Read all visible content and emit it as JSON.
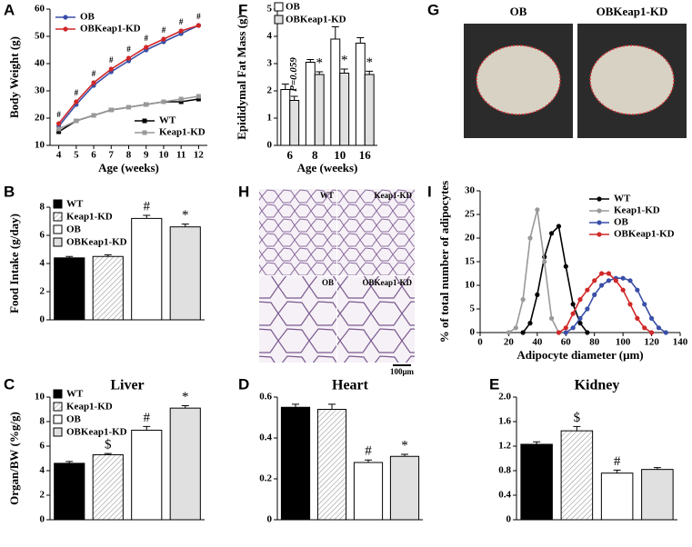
{
  "chart_data": [
    {
      "type": "line",
      "panel": "A",
      "xlabel": "Age (weeks)",
      "ylabel": "Body Weight (g)",
      "x": [
        4,
        5,
        6,
        7,
        8,
        9,
        10,
        11,
        12
      ],
      "xlim": [
        3.5,
        12.5
      ],
      "xticks": [
        4,
        5,
        6,
        7,
        8,
        9,
        10,
        11,
        12
      ],
      "ylim": [
        10,
        60
      ],
      "yticks": [
        10,
        20,
        30,
        40,
        50,
        60
      ],
      "annotations": [
        "#",
        "#",
        "#",
        "#",
        "#",
        "#",
        "#",
        "#",
        "#"
      ],
      "series": [
        {
          "name": "OB",
          "color": "#3a4fa8",
          "marker": "circle",
          "legend": "upper left",
          "values": [
            17,
            25,
            32,
            37,
            41,
            45,
            48,
            51,
            54
          ]
        },
        {
          "name": "OBKeap1-KD",
          "color": "#d02828",
          "marker": "circle",
          "legend": "upper left",
          "values": [
            18,
            26,
            33,
            38,
            42,
            46,
            49,
            52,
            54
          ]
        },
        {
          "name": "WT",
          "color": "#000000",
          "marker": "square",
          "legend": "lower right",
          "values": [
            15,
            19,
            21,
            23,
            24,
            25,
            26,
            26,
            27
          ]
        },
        {
          "name": "Keap1-KD",
          "color": "#999999",
          "marker": "square",
          "legend": "lower right",
          "values": [
            16,
            19,
            21,
            23,
            24,
            25,
            26,
            27,
            28
          ]
        }
      ]
    },
    {
      "type": "bar",
      "panel": "F",
      "xlabel": "Age (weeks)",
      "ylabel": "Epididymal Fat Mass (g)",
      "categories": [
        "6",
        "8",
        "10",
        "16"
      ],
      "ylim": [
        0,
        5
      ],
      "yticks": [
        0,
        1,
        2,
        3,
        4,
        5
      ],
      "series": [
        {
          "name": "OB",
          "color": "#ffffff",
          "values": [
            2.05,
            3.05,
            3.9,
            3.75
          ],
          "errors": [
            0.2,
            0.1,
            0.45,
            0.2
          ],
          "markers": [
            null,
            null,
            null,
            null
          ]
        },
        {
          "name": "OBKeap1-KD",
          "color": "#e0e0e0",
          "values": [
            1.65,
            2.6,
            2.65,
            2.6
          ],
          "errors": [
            0.15,
            0.1,
            0.15,
            0.12
          ],
          "markers": [
            "P=0.059",
            "*",
            "*",
            "*"
          ]
        }
      ]
    },
    {
      "type": "bar",
      "panel": "B",
      "ylabel": "Food Intake (g/day)",
      "ylim": [
        0,
        8
      ],
      "yticks": [
        0,
        2,
        4,
        6,
        8
      ],
      "legend": [
        "WT",
        "Keap1-KD",
        "OB",
        "OBKeap1-KD"
      ],
      "colors": [
        "#000000",
        "#eeeeee",
        "#ffffff",
        "#e0e0e0"
      ],
      "values": [
        4.4,
        4.5,
        7.2,
        6.6
      ],
      "errors": [
        0.1,
        0.12,
        0.22,
        0.2
      ],
      "markers": [
        null,
        null,
        "#",
        "*"
      ]
    },
    {
      "type": "line",
      "panel": "I",
      "xlabel": "Adipocyte diameter (μm)",
      "ylabel": "% of total number of adipocytes",
      "xlim": [
        0,
        140
      ],
      "xticks": [
        0,
        20,
        40,
        60,
        80,
        100,
        120,
        140
      ],
      "ylim": [
        0,
        30
      ],
      "yticks": [
        0,
        5,
        10,
        15,
        20,
        25,
        30
      ],
      "series": [
        {
          "name": "WT",
          "color": "#000000",
          "marker": "circle",
          "legend": "upper right",
          "x": [
            30,
            35,
            40,
            45,
            50,
            55,
            60,
            65,
            70,
            75
          ],
          "values": [
            0,
            2,
            8,
            16,
            21,
            22.5,
            14,
            6,
            2,
            0
          ]
        },
        {
          "name": "Keap1-KD",
          "color": "#999999",
          "marker": "circle",
          "legend": "upper right",
          "x": [
            20,
            25,
            30,
            35,
            40,
            45,
            50,
            55
          ],
          "values": [
            0,
            1,
            7,
            20,
            26,
            15,
            3,
            0
          ]
        },
        {
          "name": "OB",
          "color": "#3a4fa8",
          "marker": "circle",
          "legend": "upper right",
          "x": [
            60,
            65,
            70,
            75,
            80,
            85,
            90,
            95,
            100,
            105,
            110,
            115,
            120,
            125,
            130
          ],
          "values": [
            0,
            1,
            3,
            5,
            8,
            10,
            11,
            11.5,
            11.5,
            11,
            9,
            6,
            3,
            1,
            0
          ]
        },
        {
          "name": "OBKeap1-KD",
          "color": "#d02828",
          "marker": "circle",
          "legend": "upper right",
          "x": [
            55,
            60,
            65,
            70,
            75,
            80,
            85,
            90,
            95,
            100,
            105,
            110,
            115,
            120
          ],
          "values": [
            0,
            1,
            4,
            7,
            9,
            11,
            12.5,
            12.5,
            11,
            9,
            6,
            3,
            1,
            0
          ]
        }
      ]
    },
    {
      "type": "bar",
      "panel": "C",
      "title": "Liver",
      "ylabel": "Organ/BW (%g/g)",
      "ylim": [
        0,
        10
      ],
      "yticks": [
        0,
        2,
        4,
        6,
        8,
        10
      ],
      "legend": [
        "WT",
        "Keap1-KD",
        "OB",
        "OBKeap1-KD"
      ],
      "colors": [
        "#000000",
        "#eeeeee",
        "#ffffff",
        "#e0e0e0"
      ],
      "values": [
        4.6,
        5.3,
        7.3,
        9.1
      ],
      "errors": [
        0.15,
        0.1,
        0.3,
        0.2
      ],
      "markers": [
        null,
        "$",
        "#",
        "*"
      ]
    },
    {
      "type": "bar",
      "panel": "D",
      "title": "Heart",
      "ylim": [
        0,
        0.6
      ],
      "yticks": [
        0,
        0.2,
        0.4,
        0.6
      ],
      "colors": [
        "#000000",
        "#eeeeee",
        "#ffffff",
        "#e0e0e0"
      ],
      "values": [
        0.55,
        0.54,
        0.28,
        0.31
      ],
      "errors": [
        0.015,
        0.025,
        0.012,
        0.01
      ],
      "markers": [
        null,
        null,
        "#",
        "*"
      ]
    },
    {
      "type": "bar",
      "panel": "E",
      "title": "Kidney",
      "ylim": [
        0,
        2
      ],
      "yticks": [
        0,
        0.4,
        0.8,
        1.2,
        1.6,
        {
          "value": 2,
          "label": "2.0"
        }
      ],
      "colors": [
        "#000000",
        "#eeeeee",
        "#ffffff",
        "#e0e0e0"
      ],
      "values": [
        1.23,
        1.45,
        0.76,
        0.82
      ],
      "errors": [
        0.04,
        0.07,
        0.05,
        0.03
      ],
      "markers": [
        null,
        "$",
        "#",
        null
      ]
    }
  ],
  "images": {
    "G": {
      "panel": "G",
      "labels": [
        "OB",
        "OBKeap1-KD"
      ]
    },
    "H": {
      "panel": "H",
      "labels": [
        "WT",
        "Keap1-KD",
        "OB",
        "OBKeap1-KD"
      ],
      "scale_bar": "100μm"
    }
  }
}
